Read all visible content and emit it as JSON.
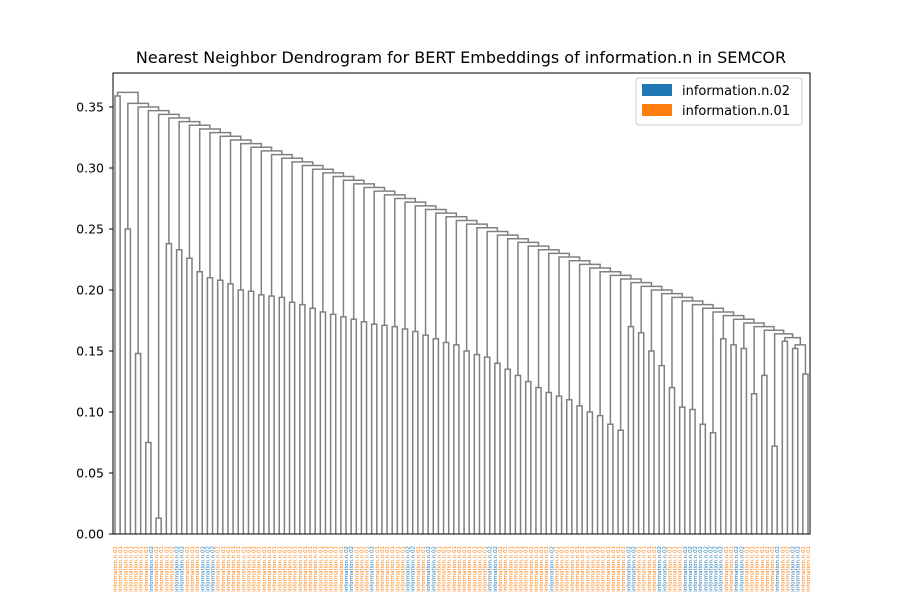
{
  "chart_data": {
    "type": "dendrogram",
    "title": "Nearest Neighbor Dendrogram for BERT Embeddings of information.n in SEMCOR",
    "xlabel": "",
    "ylabel": "",
    "ylim": [
      0,
      0.37
    ],
    "yticks": [
      0.0,
      0.05,
      0.1,
      0.15,
      0.2,
      0.25,
      0.3,
      0.35
    ],
    "ytick_labels": [
      "0.00",
      "0.05",
      "0.10",
      "0.15",
      "0.20",
      "0.25",
      "0.30",
      "0.35"
    ],
    "link_color": "#808080",
    "legend": [
      {
        "label": "information.n.02",
        "color": "#1f77b4"
      },
      {
        "label": "information.n.01",
        "color": "#ff7f0e"
      }
    ],
    "leaf_labels": {
      "information.n.02": "information.n.02",
      "information.n.01": "information.n.01"
    },
    "leaf_count": 136,
    "blue_leaf_indices": [
      7,
      12,
      13,
      17,
      18,
      19,
      45,
      46,
      50,
      57,
      58,
      61,
      62,
      73,
      74,
      85,
      100,
      101,
      106,
      107,
      111,
      112,
      113,
      114,
      115,
      116,
      117,
      118,
      121,
      122,
      129,
      132,
      133
    ],
    "merges": [
      {
        "left": 0,
        "right": 1,
        "height": 0.359
      },
      {
        "left": 2,
        "right": 3,
        "height": 0.25
      },
      {
        "left": 4,
        "right": 5,
        "height": 0.148
      },
      {
        "left": 6,
        "right": 7,
        "height": 0.075
      },
      {
        "left": 8,
        "right": 9,
        "height": 0.013
      },
      {
        "left": 10,
        "right": 11,
        "height": 0.238
      },
      {
        "left": 12,
        "right": 13,
        "height": 0.233
      },
      {
        "left": 14,
        "right": 15,
        "height": 0.226
      },
      {
        "left": 16,
        "right": 17,
        "height": 0.215
      },
      {
        "left": 18,
        "right": 19,
        "height": 0.21
      },
      {
        "left": 20,
        "right": 21,
        "height": 0.208
      },
      {
        "left": 22,
        "right": 23,
        "height": 0.205
      },
      {
        "left": 24,
        "right": 25,
        "height": 0.2
      },
      {
        "left": 26,
        "right": 27,
        "height": 0.199
      },
      {
        "left": 28,
        "right": 29,
        "height": 0.196
      },
      {
        "left": 30,
        "right": 31,
        "height": 0.195
      },
      {
        "left": 32,
        "right": 33,
        "height": 0.194
      },
      {
        "left": 34,
        "right": 35,
        "height": 0.19
      },
      {
        "left": 36,
        "right": 37,
        "height": 0.188
      },
      {
        "left": 38,
        "right": 39,
        "height": 0.185
      },
      {
        "left": 40,
        "right": 41,
        "height": 0.182
      },
      {
        "left": 42,
        "right": 43,
        "height": 0.18
      },
      {
        "left": 44,
        "right": 45,
        "height": 0.178
      },
      {
        "left": 46,
        "right": 47,
        "height": 0.176
      },
      {
        "left": 48,
        "right": 49,
        "height": 0.174
      },
      {
        "left": 50,
        "right": 51,
        "height": 0.172
      },
      {
        "left": 52,
        "right": 53,
        "height": 0.171
      },
      {
        "left": 54,
        "right": 55,
        "height": 0.17
      },
      {
        "left": 56,
        "right": 57,
        "height": 0.168
      },
      {
        "left": 58,
        "right": 59,
        "height": 0.166
      },
      {
        "left": 60,
        "right": 61,
        "height": 0.163
      },
      {
        "left": 62,
        "right": 63,
        "height": 0.16
      },
      {
        "left": 64,
        "right": 65,
        "height": 0.157
      },
      {
        "left": 66,
        "right": 67,
        "height": 0.155
      },
      {
        "left": 68,
        "right": 69,
        "height": 0.15
      },
      {
        "left": 70,
        "right": 71,
        "height": 0.147
      },
      {
        "left": 72,
        "right": 73,
        "height": 0.145
      },
      {
        "left": 74,
        "right": 75,
        "height": 0.14
      },
      {
        "left": 76,
        "right": 77,
        "height": 0.135
      },
      {
        "left": 78,
        "right": 79,
        "height": 0.13
      },
      {
        "left": 80,
        "right": 81,
        "height": 0.125
      },
      {
        "left": 82,
        "right": 83,
        "height": 0.12
      },
      {
        "left": 84,
        "right": 85,
        "height": 0.116
      },
      {
        "left": 86,
        "right": 87,
        "height": 0.113
      },
      {
        "left": 88,
        "right": 89,
        "height": 0.11
      },
      {
        "left": 90,
        "right": 91,
        "height": 0.105
      },
      {
        "left": 92,
        "right": 93,
        "height": 0.1
      },
      {
        "left": 94,
        "right": 95,
        "height": 0.097
      },
      {
        "left": 96,
        "right": 97,
        "height": 0.09
      },
      {
        "left": 98,
        "right": 99,
        "height": 0.085
      },
      {
        "left": 100,
        "right": 101,
        "height": 0.17
      },
      {
        "left": 102,
        "right": 103,
        "height": 0.165
      },
      {
        "left": 104,
        "right": 105,
        "height": 0.15
      },
      {
        "left": 106,
        "right": 107,
        "height": 0.138
      },
      {
        "left": 108,
        "right": 109,
        "height": 0.12
      },
      {
        "left": 110,
        "right": 111,
        "height": 0.104
      },
      {
        "left": 112,
        "right": 113,
        "height": 0.102
      },
      {
        "left": 114,
        "right": 115,
        "height": 0.09
      },
      {
        "left": 116,
        "right": 117,
        "height": 0.083
      },
      {
        "left": 118,
        "right": 119,
        "height": 0.16
      },
      {
        "left": 120,
        "right": 121,
        "height": 0.155
      },
      {
        "left": 122,
        "right": 123,
        "height": 0.152
      },
      {
        "left": 124,
        "right": 125,
        "height": 0.115
      },
      {
        "left": 126,
        "right": 127,
        "height": 0.13
      },
      {
        "left": 128,
        "right": 129,
        "height": 0.072
      },
      {
        "left": 130,
        "right": 131,
        "height": 0.158
      },
      {
        "left": 132,
        "right": 133,
        "height": 0.152
      },
      {
        "left": 134,
        "right": 135,
        "height": 0.131
      }
    ]
  }
}
